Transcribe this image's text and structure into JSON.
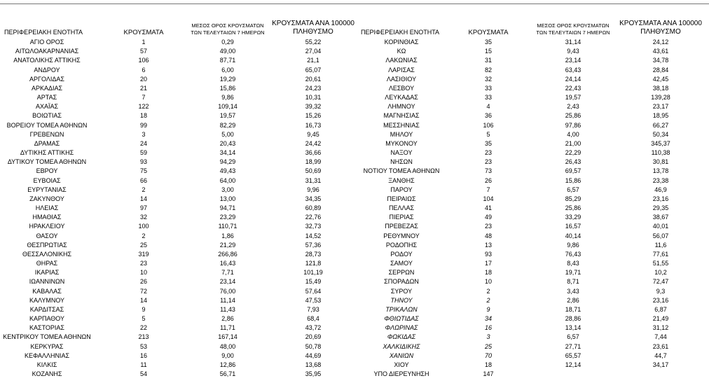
{
  "tables": [
    {
      "headers": [
        "ΠΕΡΙΦΕΡΕΙΑΚΗ ΕΝΟΤΗΤΑ",
        "ΚΡΟΥΣΜΑΤΑ",
        "ΜΕΣΟΣ ΟΡΟΣ ΚΡΟΥΣΜΑΤΩΝ ΤΩΝ ΤΕΛΕΥΤΑΙΩΝ 7 ΗΜΕΡΩΝ",
        "ΚΡΟΥΣΜΑΤΑ ΑΝΑ 100000 ΠΛΗΘΥΣΜΟ"
      ],
      "rows": [
        [
          "ΑΓΙΟ ΟΡΟΣ",
          "1",
          "0,29",
          "55,22"
        ],
        [
          "ΑΙΤΩΛΟΑΚΑΡΝΑΝΙΑΣ",
          "57",
          "49,00",
          "27,04"
        ],
        [
          "ΑΝΑΤΟΛΙΚΗΣ ΑΤΤΙΚΗΣ",
          "106",
          "87,71",
          "21,1"
        ],
        [
          "ΑΝΔΡΟΥ",
          "6",
          "6,00",
          "65,07"
        ],
        [
          "ΑΡΓΟΛΙΔΑΣ",
          "20",
          "19,29",
          "20,61"
        ],
        [
          "ΑΡΚΑΔΙΑΣ",
          "21",
          "15,86",
          "24,23"
        ],
        [
          "ΑΡΤΑΣ",
          "7",
          "9,86",
          "10,31"
        ],
        [
          "ΑΧΑΪΑΣ",
          "122",
          "109,14",
          "39,32"
        ],
        [
          "ΒΟΙΩΤΙΑΣ",
          "18",
          "19,57",
          "15,26"
        ],
        [
          "ΒΟΡΕΙΟΥ ΤΟΜΕΑ ΑΘΗΝΩΝ",
          "99",
          "82,29",
          "16,73"
        ],
        [
          "ΓΡΕΒΕΝΩΝ",
          "3",
          "5,00",
          "9,45"
        ],
        [
          "ΔΡΑΜΑΣ",
          "24",
          "20,43",
          "24,42"
        ],
        [
          "ΔΥΤΙΚΗΣ ΑΤΤΙΚΗΣ",
          "59",
          "34,14",
          "36,66"
        ],
        [
          "ΔΥΤΙΚΟΥ ΤΟΜΕΑ ΑΘΗΝΩΝ",
          "93",
          "94,29",
          "18,99"
        ],
        [
          "ΕΒΡΟΥ",
          "75",
          "49,43",
          "50,69"
        ],
        [
          "ΕΥΒΟΙΑΣ",
          "66",
          "64,00",
          "31,31"
        ],
        [
          "ΕΥΡΥΤΑΝΙΑΣ",
          "2",
          "3,00",
          "9,96"
        ],
        [
          "ΖΑΚΥΝΘΟΥ",
          "14",
          "13,00",
          "34,35"
        ],
        [
          "ΗΛΕΙΑΣ",
          "97",
          "94,71",
          "60,89"
        ],
        [
          "ΗΜΑΘΙΑΣ",
          "32",
          "23,29",
          "22,76"
        ],
        [
          "ΗΡΑΚΛΕΙΟΥ",
          "100",
          "110,71",
          "32,73"
        ],
        [
          "ΘΑΣΟΥ",
          "2",
          "1,86",
          "14,52"
        ],
        [
          "ΘΕΣΠΡΩΤΙΑΣ",
          "25",
          "21,29",
          "57,36"
        ],
        [
          "ΘΕΣΣΑΛΟΝΙΚΗΣ",
          "319",
          "266,86",
          "28,73"
        ],
        [
          "ΘΗΡΑΣ",
          "23",
          "16,43",
          "121,8"
        ],
        [
          "ΙΚΑΡΙΑΣ",
          "10",
          "7,71",
          "101,19"
        ],
        [
          "ΙΩΑΝΝΙΝΩΝ",
          "26",
          "23,14",
          "15,49"
        ],
        [
          "ΚΑΒΑΛΑΣ",
          "72",
          "76,00",
          "57,64"
        ],
        [
          "ΚΑΛΥΜΝΟΥ",
          "14",
          "11,14",
          "47,53"
        ],
        [
          "ΚΑΡΔΙΤΣΑΣ",
          "9",
          "11,43",
          "7,93"
        ],
        [
          "ΚΑΡΠΑΘΟΥ",
          "5",
          "2,86",
          "68,4"
        ],
        [
          "ΚΑΣΤΟΡΙΑΣ",
          "22",
          "11,71",
          "43,72"
        ],
        [
          "ΚΕΝΤΡΙΚΟΥ ΤΟΜΕΑ ΑΘΗΝΩΝ",
          "213",
          "167,14",
          "20,69"
        ],
        [
          "ΚΕΡΚΥΡΑΣ",
          "53",
          "48,00",
          "50,78"
        ],
        [
          "ΚΕΦΑΛΛΗΝΙΑΣ",
          "16",
          "9,00",
          "44,69"
        ],
        [
          "ΚΙΛΚΙΣ",
          "11",
          "12,86",
          "13,68"
        ],
        [
          "ΚΟΖΑΝΗΣ",
          "54",
          "56,71",
          "35,95"
        ]
      ]
    },
    {
      "headers": [
        "ΠΕΡΙΦΕΡΕΙΑΚΗ ΕΝΟΤΗΤΑ",
        "ΚΡΟΥΣΜΑΤΑ",
        "ΜΕΣΟΣ ΟΡΟΣ ΚΡΟΥΣΜΑΤΩΝ ΤΩΝ ΤΕΛΕΥΤΑΙΩΝ 7 ΗΜΕΡΩΝ",
        "ΚΡΟΥΣΜΑΤΑ ΑΝΑ 100000 ΠΛΗΘΥΣΜΟ"
      ],
      "rows": [
        [
          "ΚΟΡΙΝΘΙΑΣ",
          "35",
          "31,14",
          "24,12"
        ],
        [
          "ΚΩ",
          "15",
          "9,43",
          "43,61"
        ],
        [
          "ΛΑΚΩΝΙΑΣ",
          "31",
          "23,14",
          "34,78"
        ],
        [
          "ΛΑΡΙΣΑΣ",
          "82",
          "63,43",
          "28,84"
        ],
        [
          "ΛΑΣΙΘΙΟΥ",
          "32",
          "24,14",
          "42,45"
        ],
        [
          "ΛΕΣΒΟΥ",
          "33",
          "22,43",
          "38,18"
        ],
        [
          "ΛΕΥΚΑΔΑΣ",
          "33",
          "19,57",
          "139,28"
        ],
        [
          "ΛΗΜΝΟΥ",
          "4",
          "2,43",
          "23,17"
        ],
        [
          "ΜΑΓΝΗΣΙΑΣ",
          "36",
          "25,86",
          "18,95"
        ],
        [
          "ΜΕΣΣΗΝΙΑΣ",
          "106",
          "97,86",
          "66,27"
        ],
        [
          "ΜΗΛΟΥ",
          "5",
          "4,00",
          "50,34"
        ],
        [
          "ΜΥΚΟΝΟΥ",
          "35",
          "21,00",
          "345,37"
        ],
        [
          "ΝΑΞΟΥ",
          "23",
          "22,29",
          "110,38"
        ],
        [
          "ΝΗΣΩΝ",
          "23",
          "26,43",
          "30,81"
        ],
        [
          "ΝΟΤΙΟΥ ΤΟΜΕΑ ΑΘΗΝΩΝ",
          "73",
          "69,57",
          "13,78"
        ],
        [
          "ΞΑΝΘΗΣ",
          "26",
          "15,86",
          "23,38"
        ],
        [
          "ΠΑΡΟΥ",
          "7",
          "6,57",
          "46,9"
        ],
        [
          "ΠΕΙΡΑΙΩΣ",
          "104",
          "85,29",
          "23,16"
        ],
        [
          "ΠΕΛΛΑΣ",
          "41",
          "25,86",
          "29,35"
        ],
        [
          "ΠΙΕΡΙΑΣ",
          "49",
          "33,29",
          "38,67"
        ],
        [
          "ΠΡΕΒΕΖΑΣ",
          "23",
          "16,57",
          "40,01"
        ],
        [
          "ΡΕΘΥΜΝΟΥ",
          "48",
          "40,14",
          "56,07"
        ],
        [
          "ΡΟΔΟΠΗΣ",
          "13",
          "9,86",
          "11,6"
        ],
        [
          "ΡΟΔΟΥ",
          "93",
          "76,43",
          "77,61"
        ],
        [
          "ΣΑΜΟΥ",
          "17",
          "8,43",
          "51,55"
        ],
        [
          "ΣΕΡΡΩΝ",
          "18",
          "19,71",
          "10,2"
        ],
        [
          "ΣΠΟΡΑΔΩΝ",
          "10",
          "8,71",
          "72,47"
        ],
        [
          "ΣΥΡΟΥ",
          "2",
          "3,43",
          "9,3"
        ],
        [
          "ΤΗΝΟΥ",
          "2",
          "2,86",
          "23,16"
        ],
        [
          "ΤΡΙΚΑΛΩΝ",
          "9",
          "18,71",
          "6,87"
        ],
        [
          "ΦΘΙΩΤΙΔΑΣ",
          "34",
          "28,86",
          "21,49"
        ],
        [
          "ΦΛΩΡΙΝΑΣ",
          "16",
          "13,14",
          "31,12"
        ],
        [
          "ΦΩΚΙΔΑΣ",
          "3",
          "6,57",
          "7,44"
        ],
        [
          "ΧΑΛΚΙΔΙΚΗΣ",
          "25",
          "27,71",
          "23,61"
        ],
        [
          "ΧΑΝΙΩΝ",
          "70",
          "65,57",
          "44,7"
        ],
        [
          "ΧΙΟΥ",
          "18",
          "12,14",
          "34,17"
        ],
        [
          "ΥΠΟ ΔΙΕΡΕΥΝΗΣΗ",
          "147"
        ]
      ]
    }
  ]
}
